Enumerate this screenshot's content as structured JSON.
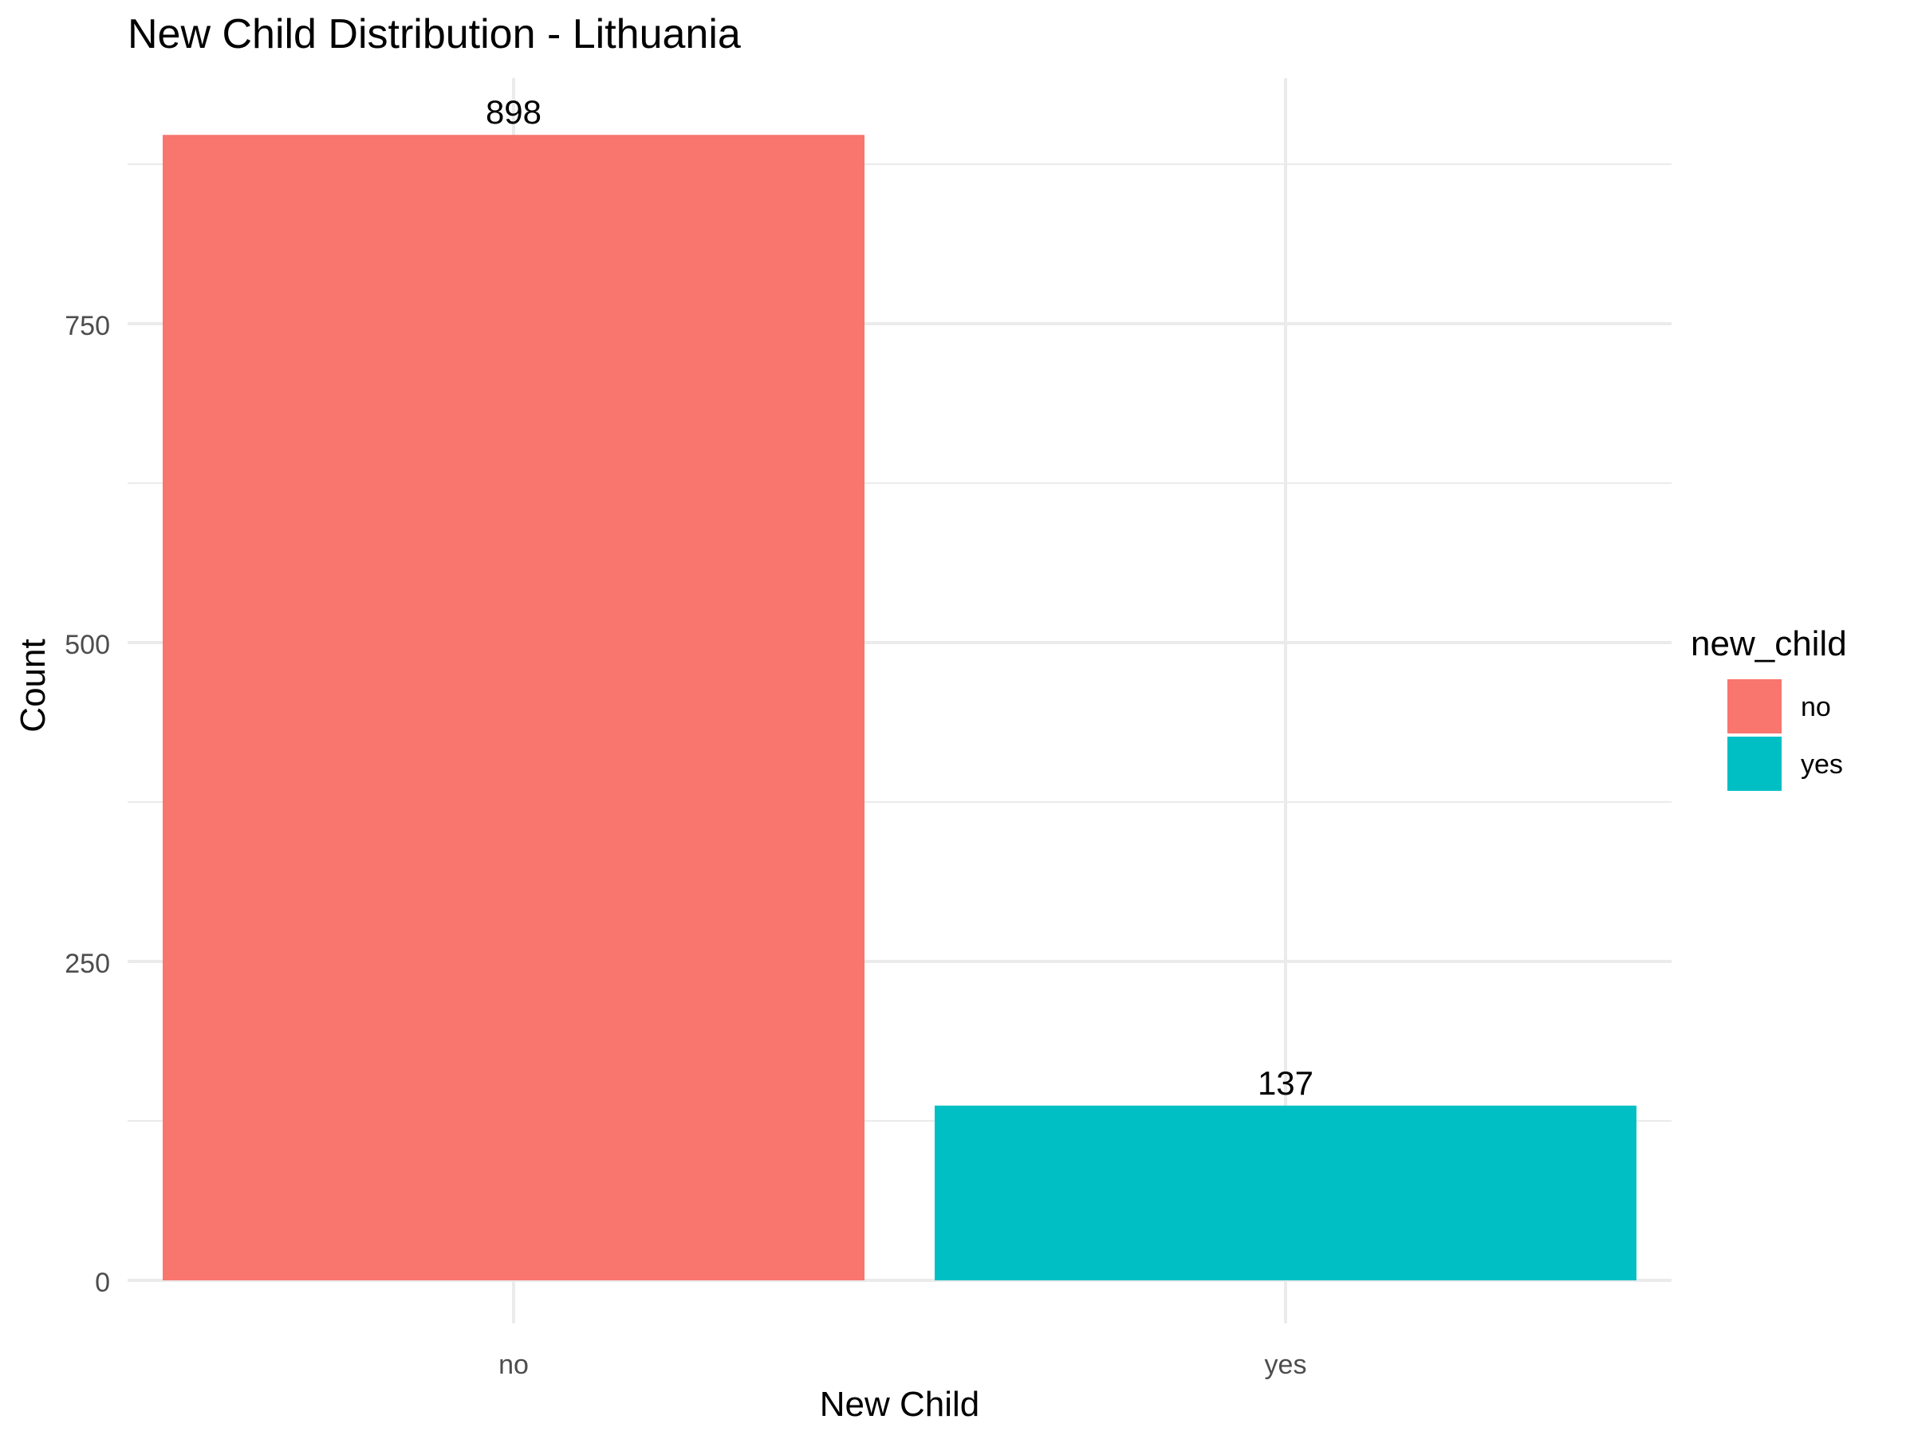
{
  "chart_data": {
    "type": "bar",
    "title": "New Child Distribution - Lithuania",
    "xlabel": "New Child",
    "ylabel": "Count",
    "categories": [
      "no",
      "yes"
    ],
    "values": [
      898,
      137
    ],
    "data_labels": [
      "898",
      "137"
    ],
    "colors": [
      "#F8766D",
      "#00BFC4"
    ],
    "ylim": [
      0,
      945
    ],
    "y_ticks": [
      0,
      250,
      500,
      750
    ],
    "y_tick_labels": [
      "0",
      "250",
      "500",
      "750"
    ],
    "y_minor_ticks": [
      125,
      375,
      625,
      875
    ],
    "grid": true,
    "legend": {
      "title": "new_child",
      "position": "right",
      "entries": [
        {
          "label": "no",
          "color": "#F8766D"
        },
        {
          "label": "yes",
          "color": "#00BFC4"
        }
      ]
    }
  }
}
